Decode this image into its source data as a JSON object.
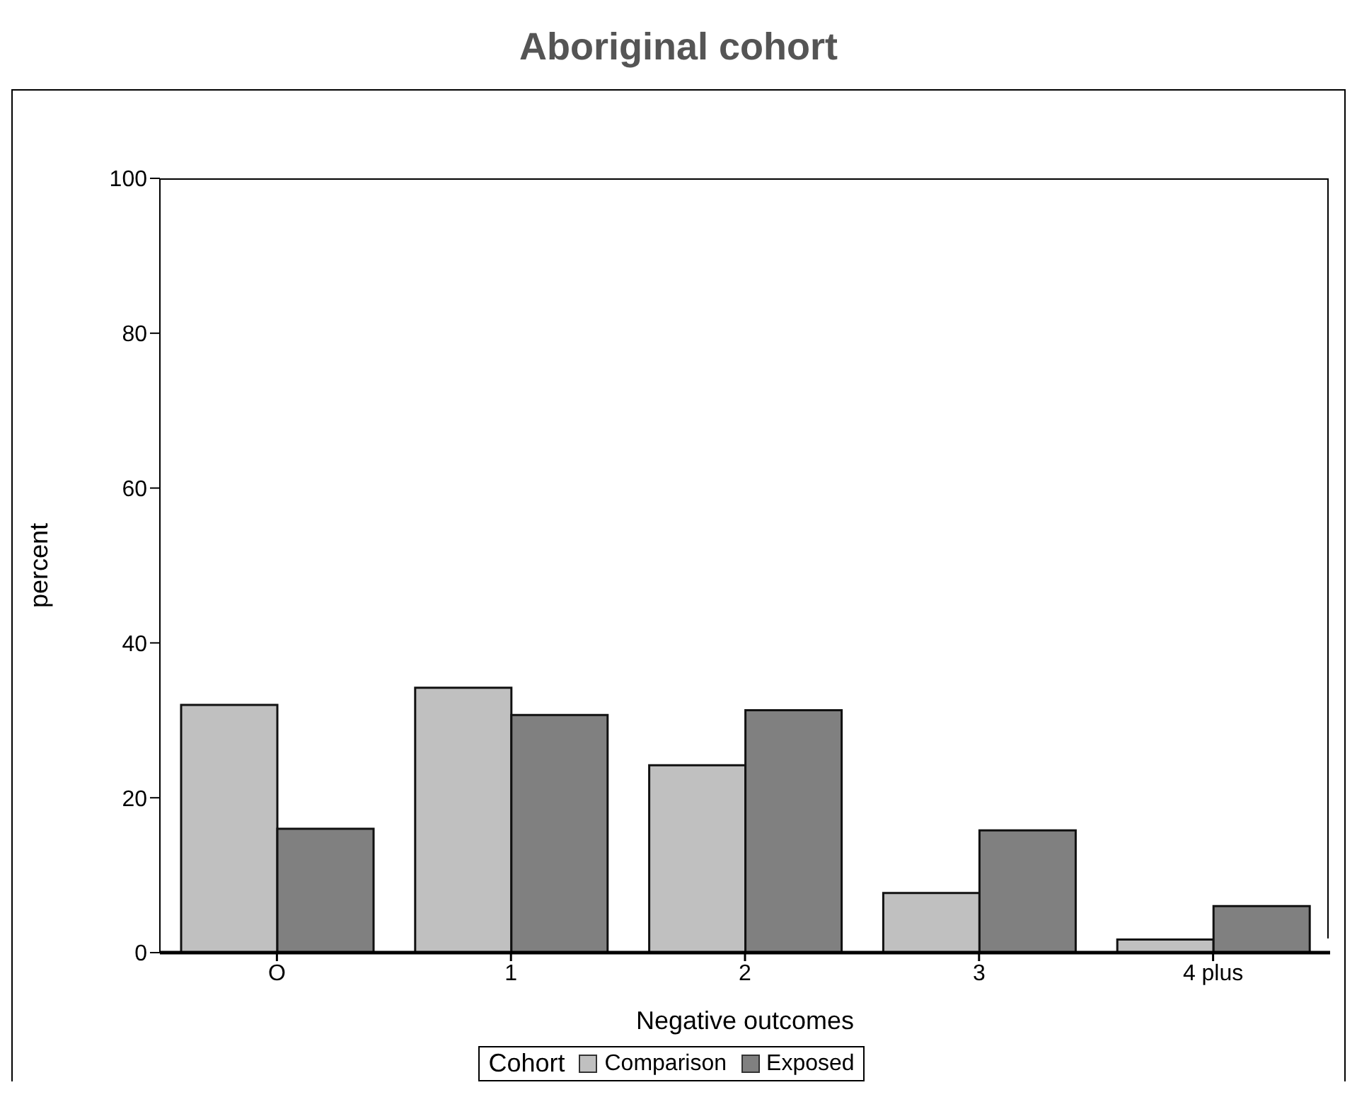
{
  "chart_data": {
    "type": "bar",
    "title": "Aboriginal cohort",
    "xlabel": "Negative outcomes",
    "ylabel": "percent",
    "legend_title": "Cohort",
    "legend": "bottom",
    "categories": [
      "O",
      "1",
      "2",
      "3",
      "4 plus"
    ],
    "series": [
      {
        "name": "Comparison",
        "color": "#c0c0c0",
        "values": [
          32,
          34.2,
          24.2,
          7.7,
          1.7
        ]
      },
      {
        "name": "Exposed",
        "color": "#808080",
        "values": [
          16,
          30.7,
          31.3,
          15.8,
          6
        ]
      }
    ],
    "ylim": [
      0,
      100
    ],
    "yticks": [
      0,
      20,
      40,
      60,
      80,
      100
    ]
  }
}
